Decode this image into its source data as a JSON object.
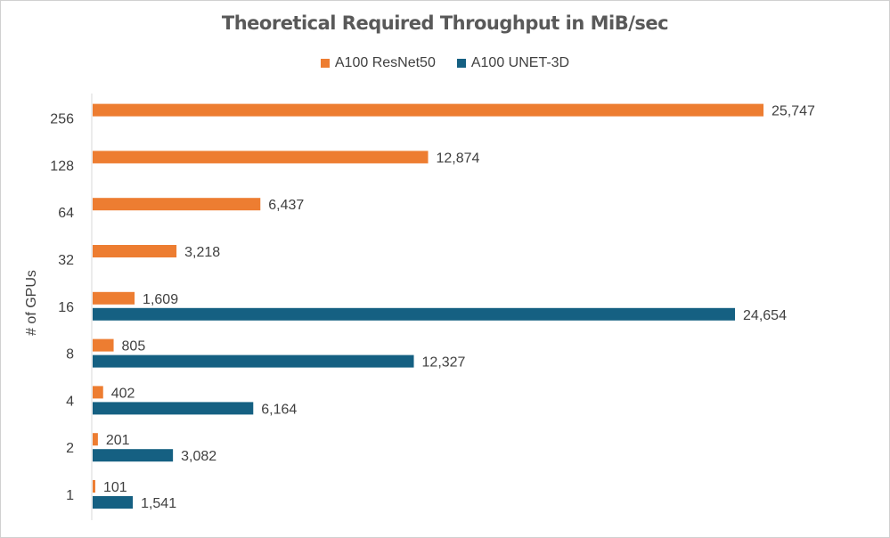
{
  "chart_data": {
    "type": "bar",
    "orientation": "horizontal",
    "title": "Theoretical Required Throughput in MiB/sec",
    "ylabel": "# of GPUs",
    "xlabel": "",
    "categories": [
      "1",
      "2",
      "4",
      "8",
      "16",
      "32",
      "64",
      "128",
      "256"
    ],
    "series": [
      {
        "name": "A100 ResNet50",
        "color": "#ED7D31",
        "values": [
          101,
          201,
          402,
          805,
          1609,
          3218,
          6437,
          12874,
          25747
        ],
        "labels": [
          "101",
          "201",
          "402",
          "805",
          "1,609",
          "3,218",
          "6,437",
          "12,874",
          "25,747"
        ]
      },
      {
        "name": "A100 UNET-3D",
        "color": "#156082",
        "values": [
          1541,
          3082,
          6164,
          12327,
          24654,
          null,
          null,
          null,
          null
        ],
        "labels": [
          "1,541",
          "3,082",
          "6,164",
          "12,327",
          "24,654",
          null,
          null,
          null,
          null
        ]
      }
    ],
    "xlim": [
      0,
      25747
    ],
    "grid": false,
    "legend_position": "top",
    "x_axis_visible": false
  }
}
